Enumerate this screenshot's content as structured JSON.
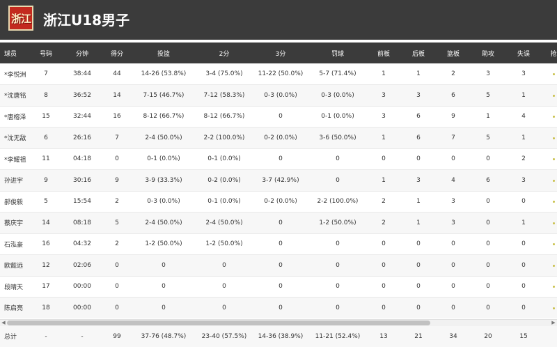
{
  "header": {
    "logo_text": "浙江",
    "team_name": "浙江U18男子"
  },
  "table": {
    "columns": [
      "球员",
      "号码",
      "分钟",
      "得分",
      "投篮",
      "2分",
      "3分",
      "罚球",
      "前板",
      "后板",
      "篮板",
      "助攻",
      "失误",
      "抢"
    ],
    "rows": [
      {
        "name": "*李悦洲",
        "number": "7",
        "minutes": "38:44",
        "points": "44",
        "fg": "14-26 (53.8%)",
        "two": "3-4 (75.0%)",
        "three": "11-22 (50.0%)",
        "ft": "5-7 (71.4%)",
        "oreb": "1",
        "dreb": "1",
        "reb": "2",
        "ast": "3",
        "tov": "3"
      },
      {
        "name": "*沈唐铭",
        "number": "8",
        "minutes": "36:52",
        "points": "14",
        "fg": "7-15 (46.7%)",
        "two": "7-12 (58.3%)",
        "three": "0-3 (0.0%)",
        "ft": "0-3 (0.0%)",
        "oreb": "3",
        "dreb": "3",
        "reb": "6",
        "ast": "5",
        "tov": "1"
      },
      {
        "name": "*唐榕泽",
        "number": "15",
        "minutes": "32:44",
        "points": "16",
        "fg": "8-12 (66.7%)",
        "two": "8-12 (66.7%)",
        "three": "0",
        "ft": "0-1 (0.0%)",
        "oreb": "3",
        "dreb": "6",
        "reb": "9",
        "ast": "1",
        "tov": "4"
      },
      {
        "name": "*沈无敌",
        "number": "6",
        "minutes": "26:16",
        "points": "7",
        "fg": "2-4 (50.0%)",
        "two": "2-2 (100.0%)",
        "three": "0-2 (0.0%)",
        "ft": "3-6 (50.0%)",
        "oreb": "1",
        "dreb": "6",
        "reb": "7",
        "ast": "5",
        "tov": "1"
      },
      {
        "name": "*李耀祖",
        "number": "11",
        "minutes": "04:18",
        "points": "0",
        "fg": "0-1 (0.0%)",
        "two": "0-1 (0.0%)",
        "three": "0",
        "ft": "0",
        "oreb": "0",
        "dreb": "0",
        "reb": "0",
        "ast": "0",
        "tov": "2"
      },
      {
        "name": "孙进宇",
        "number": "9",
        "minutes": "30:16",
        "points": "9",
        "fg": "3-9 (33.3%)",
        "two": "0-2 (0.0%)",
        "three": "3-7 (42.9%)",
        "ft": "0",
        "oreb": "1",
        "dreb": "3",
        "reb": "4",
        "ast": "6",
        "tov": "3"
      },
      {
        "name": "郝俊毅",
        "number": "5",
        "minutes": "15:54",
        "points": "2",
        "fg": "0-3 (0.0%)",
        "two": "0-1 (0.0%)",
        "three": "0-2 (0.0%)",
        "ft": "2-2 (100.0%)",
        "oreb": "2",
        "dreb": "1",
        "reb": "3",
        "ast": "0",
        "tov": "0"
      },
      {
        "name": "蔡庆宇",
        "number": "14",
        "minutes": "08:18",
        "points": "5",
        "fg": "2-4 (50.0%)",
        "two": "2-4 (50.0%)",
        "three": "0",
        "ft": "1-2 (50.0%)",
        "oreb": "2",
        "dreb": "1",
        "reb": "3",
        "ast": "0",
        "tov": "1"
      },
      {
        "name": "石泓豪",
        "number": "16",
        "minutes": "04:32",
        "points": "2",
        "fg": "1-2 (50.0%)",
        "two": "1-2 (50.0%)",
        "three": "0",
        "ft": "0",
        "oreb": "0",
        "dreb": "0",
        "reb": "0",
        "ast": "0",
        "tov": "0"
      },
      {
        "name": "欧懿远",
        "number": "12",
        "minutes": "02:06",
        "points": "0",
        "fg": "0",
        "two": "0",
        "three": "0",
        "ft": "0",
        "oreb": "0",
        "dreb": "0",
        "reb": "0",
        "ast": "0",
        "tov": "0"
      },
      {
        "name": "段晴天",
        "number": "17",
        "minutes": "00:00",
        "points": "0",
        "fg": "0",
        "two": "0",
        "three": "0",
        "ft": "0",
        "oreb": "0",
        "dreb": "0",
        "reb": "0",
        "ast": "0",
        "tov": "0"
      },
      {
        "name": "陈启亮",
        "number": "18",
        "minutes": "00:00",
        "points": "0",
        "fg": "0",
        "two": "0",
        "three": "0",
        "ft": "0",
        "oreb": "0",
        "dreb": "0",
        "reb": "0",
        "ast": "0",
        "tov": "0"
      }
    ],
    "totals": {
      "name": "总计",
      "number": "-",
      "minutes": "-",
      "points": "99",
      "fg": "37-76 (48.7%)",
      "two": "23-40 (57.5%)",
      "three": "14-36 (38.9%)",
      "ft": "11-21 (52.4%)",
      "oreb": "13",
      "dreb": "21",
      "reb": "34",
      "ast": "20",
      "tov": "15"
    }
  },
  "scrollbar": {
    "left_arrow_icon": "triangle-left-icon",
    "right_arrow_icon": "triangle-right-icon"
  },
  "colors": {
    "header_bg": "#3b3b3b",
    "logo_bg": "#c32a1e",
    "row_alt": "#f7f7f7"
  }
}
